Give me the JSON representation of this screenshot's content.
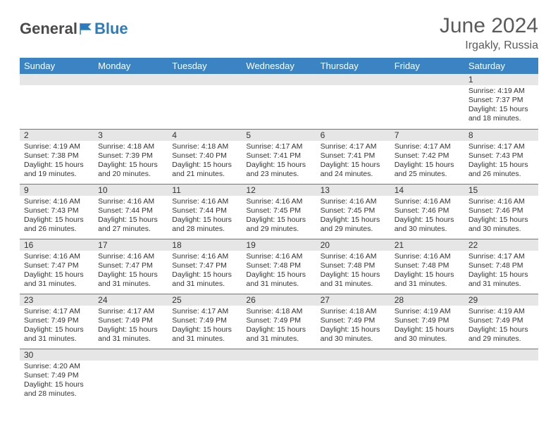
{
  "logo": {
    "general": "General",
    "blue": "Blue"
  },
  "title": "June 2024",
  "location": "Irgakly, Russia",
  "colors": {
    "header_bg": "#3a84c4",
    "header_text": "#ffffff",
    "daynum_bg": "#e6e6e6",
    "border": "#3a84c4",
    "text": "#333333",
    "title_text": "#5a5a5a",
    "logo_gray": "#4a4a4a",
    "logo_blue": "#2b7bbf"
  },
  "weekdays": [
    "Sunday",
    "Monday",
    "Tuesday",
    "Wednesday",
    "Thursday",
    "Friday",
    "Saturday"
  ],
  "weeks": [
    [
      null,
      null,
      null,
      null,
      null,
      null,
      {
        "n": "1",
        "sr": "4:19 AM",
        "ss": "7:37 PM",
        "dl": "15 hours and 18 minutes."
      }
    ],
    [
      {
        "n": "2",
        "sr": "4:19 AM",
        "ss": "7:38 PM",
        "dl": "15 hours and 19 minutes."
      },
      {
        "n": "3",
        "sr": "4:18 AM",
        "ss": "7:39 PM",
        "dl": "15 hours and 20 minutes."
      },
      {
        "n": "4",
        "sr": "4:18 AM",
        "ss": "7:40 PM",
        "dl": "15 hours and 21 minutes."
      },
      {
        "n": "5",
        "sr": "4:17 AM",
        "ss": "7:41 PM",
        "dl": "15 hours and 23 minutes."
      },
      {
        "n": "6",
        "sr": "4:17 AM",
        "ss": "7:41 PM",
        "dl": "15 hours and 24 minutes."
      },
      {
        "n": "7",
        "sr": "4:17 AM",
        "ss": "7:42 PM",
        "dl": "15 hours and 25 minutes."
      },
      {
        "n": "8",
        "sr": "4:17 AM",
        "ss": "7:43 PM",
        "dl": "15 hours and 26 minutes."
      }
    ],
    [
      {
        "n": "9",
        "sr": "4:16 AM",
        "ss": "7:43 PM",
        "dl": "15 hours and 26 minutes."
      },
      {
        "n": "10",
        "sr": "4:16 AM",
        "ss": "7:44 PM",
        "dl": "15 hours and 27 minutes."
      },
      {
        "n": "11",
        "sr": "4:16 AM",
        "ss": "7:44 PM",
        "dl": "15 hours and 28 minutes."
      },
      {
        "n": "12",
        "sr": "4:16 AM",
        "ss": "7:45 PM",
        "dl": "15 hours and 29 minutes."
      },
      {
        "n": "13",
        "sr": "4:16 AM",
        "ss": "7:45 PM",
        "dl": "15 hours and 29 minutes."
      },
      {
        "n": "14",
        "sr": "4:16 AM",
        "ss": "7:46 PM",
        "dl": "15 hours and 30 minutes."
      },
      {
        "n": "15",
        "sr": "4:16 AM",
        "ss": "7:46 PM",
        "dl": "15 hours and 30 minutes."
      }
    ],
    [
      {
        "n": "16",
        "sr": "4:16 AM",
        "ss": "7:47 PM",
        "dl": "15 hours and 31 minutes."
      },
      {
        "n": "17",
        "sr": "4:16 AM",
        "ss": "7:47 PM",
        "dl": "15 hours and 31 minutes."
      },
      {
        "n": "18",
        "sr": "4:16 AM",
        "ss": "7:47 PM",
        "dl": "15 hours and 31 minutes."
      },
      {
        "n": "19",
        "sr": "4:16 AM",
        "ss": "7:48 PM",
        "dl": "15 hours and 31 minutes."
      },
      {
        "n": "20",
        "sr": "4:16 AM",
        "ss": "7:48 PM",
        "dl": "15 hours and 31 minutes."
      },
      {
        "n": "21",
        "sr": "4:16 AM",
        "ss": "7:48 PM",
        "dl": "15 hours and 31 minutes."
      },
      {
        "n": "22",
        "sr": "4:17 AM",
        "ss": "7:48 PM",
        "dl": "15 hours and 31 minutes."
      }
    ],
    [
      {
        "n": "23",
        "sr": "4:17 AM",
        "ss": "7:49 PM",
        "dl": "15 hours and 31 minutes."
      },
      {
        "n": "24",
        "sr": "4:17 AM",
        "ss": "7:49 PM",
        "dl": "15 hours and 31 minutes."
      },
      {
        "n": "25",
        "sr": "4:17 AM",
        "ss": "7:49 PM",
        "dl": "15 hours and 31 minutes."
      },
      {
        "n": "26",
        "sr": "4:18 AM",
        "ss": "7:49 PM",
        "dl": "15 hours and 31 minutes."
      },
      {
        "n": "27",
        "sr": "4:18 AM",
        "ss": "7:49 PM",
        "dl": "15 hours and 30 minutes."
      },
      {
        "n": "28",
        "sr": "4:19 AM",
        "ss": "7:49 PM",
        "dl": "15 hours and 30 minutes."
      },
      {
        "n": "29",
        "sr": "4:19 AM",
        "ss": "7:49 PM",
        "dl": "15 hours and 29 minutes."
      }
    ],
    [
      {
        "n": "30",
        "sr": "4:20 AM",
        "ss": "7:49 PM",
        "dl": "15 hours and 28 minutes."
      },
      null,
      null,
      null,
      null,
      null,
      null
    ]
  ],
  "labels": {
    "sunrise": "Sunrise:",
    "sunset": "Sunset:",
    "daylight": "Daylight:"
  }
}
